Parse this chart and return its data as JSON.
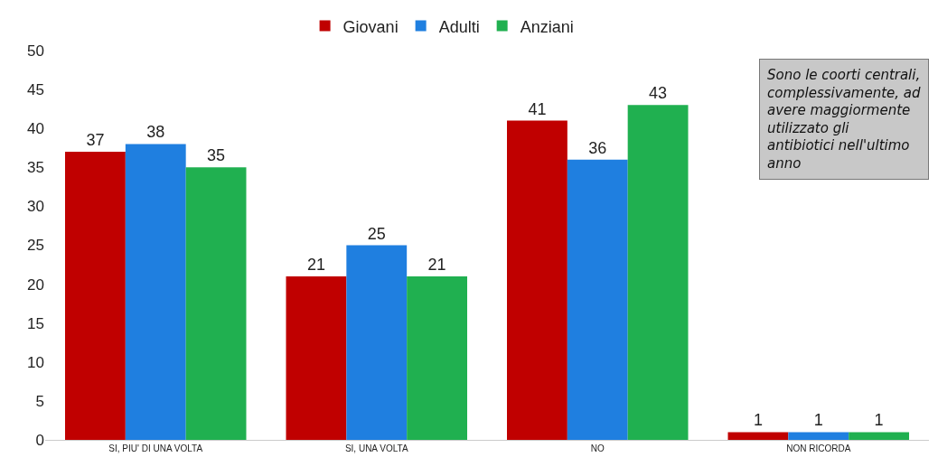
{
  "chart_data": {
    "type": "bar",
    "categories": [
      "SI, PIU' DI UNA VOLTA",
      "SI, UNA VOLTA",
      "NO",
      "NON RICORDA"
    ],
    "series": [
      {
        "name": "Giovani",
        "color": "#c00000",
        "values": [
          37,
          21,
          41,
          1
        ]
      },
      {
        "name": "Adulti",
        "color": "#1f7fe0",
        "values": [
          38,
          25,
          36,
          1
        ]
      },
      {
        "name": "Anziani",
        "color": "#20b050",
        "values": [
          35,
          21,
          43,
          1
        ]
      }
    ],
    "ylim": [
      0,
      50
    ],
    "yticks": [
      0,
      5,
      10,
      15,
      20,
      25,
      30,
      35,
      40,
      45,
      50
    ],
    "grid": false,
    "legend": "top",
    "data_labels": true,
    "annotations": [
      "Sono le coorti centrali, complessivamente, ad avere maggiormente utilizzato gli antibiotici nell'ultimo anno"
    ]
  }
}
